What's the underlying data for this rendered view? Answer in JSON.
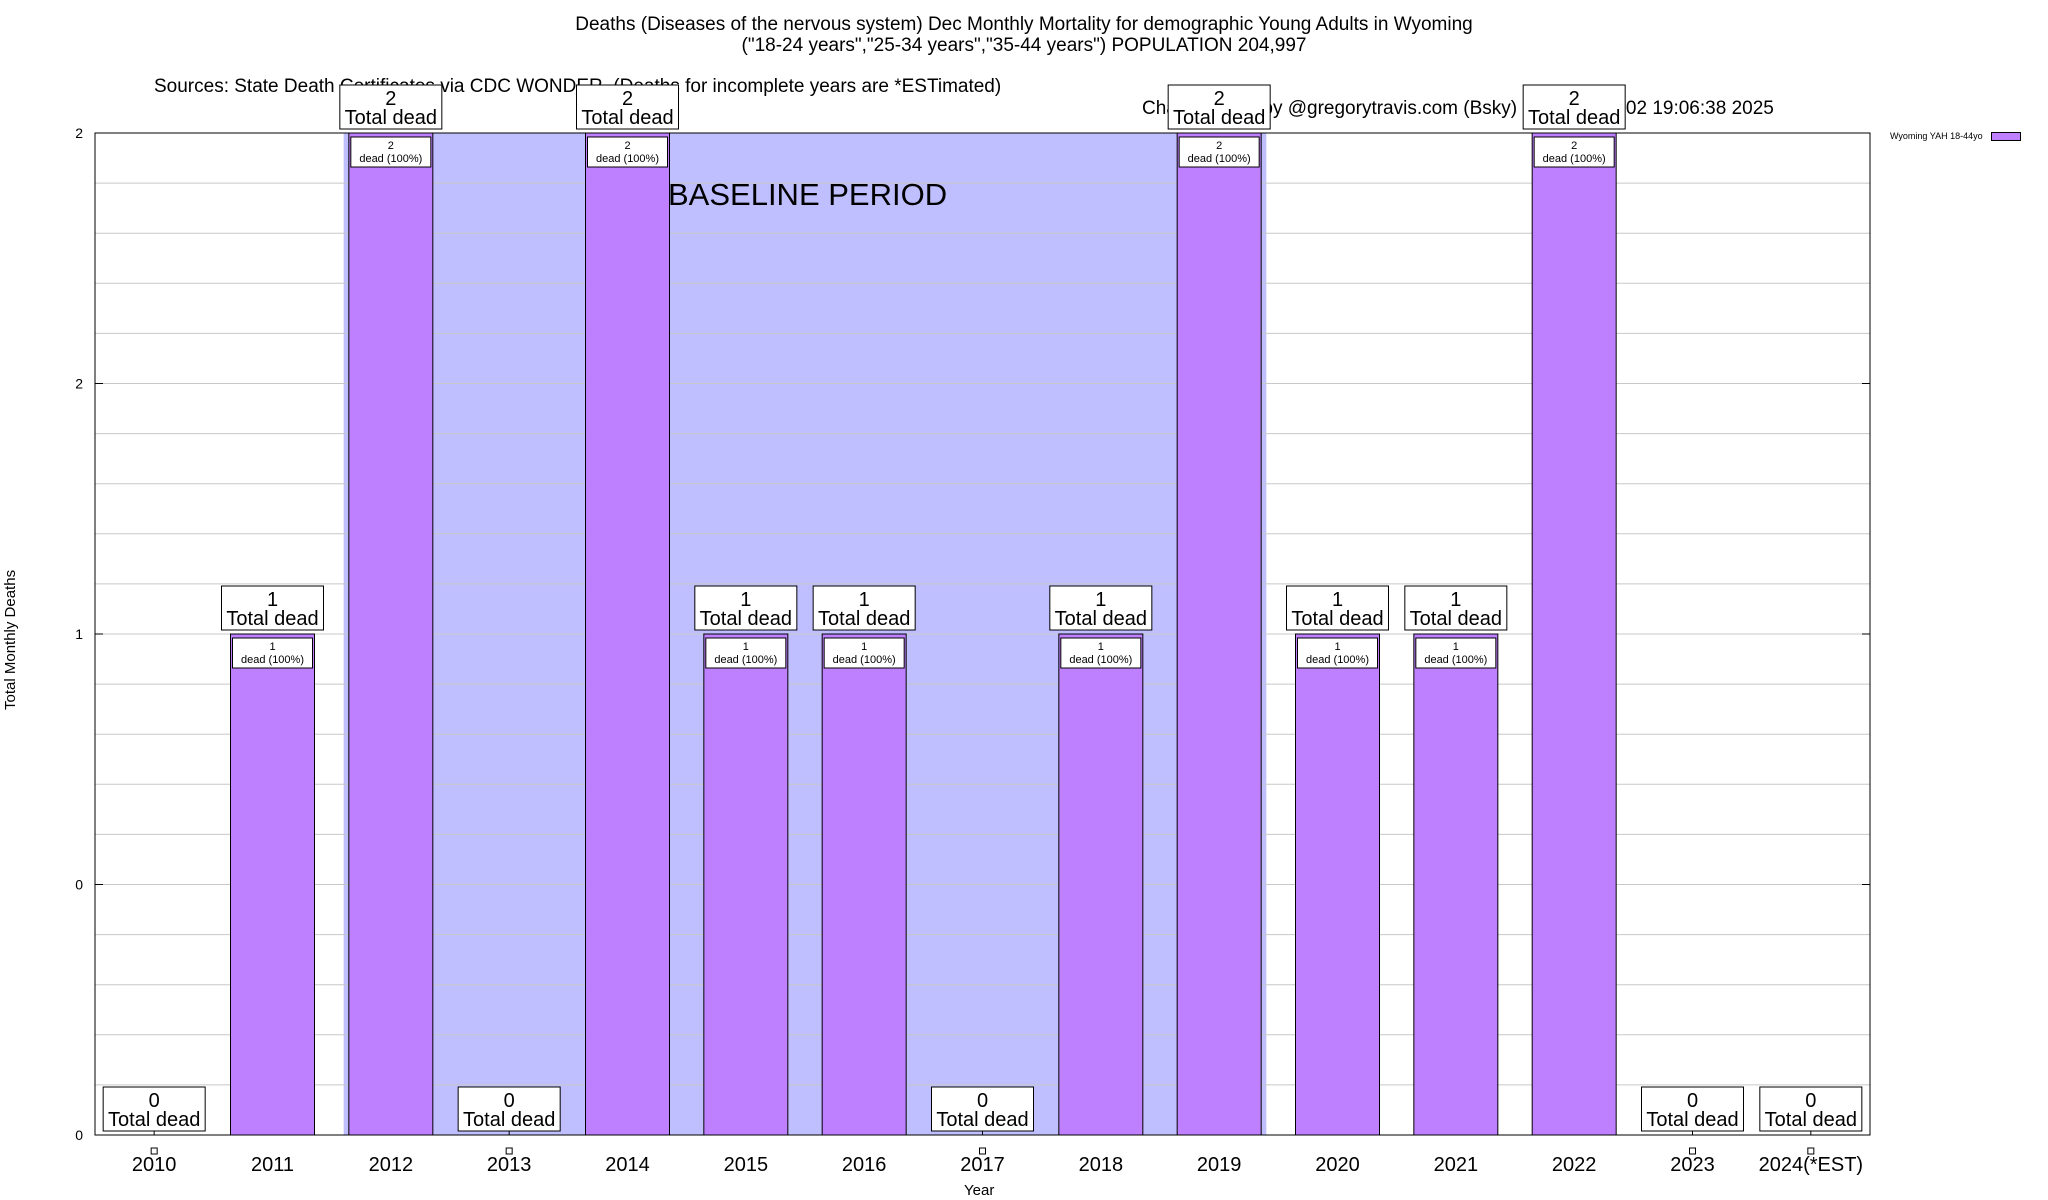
{
  "title": {
    "line1": "Deaths (Diseases of the nervous system) Dec Monthly Mortality for demographic Young Adults in Wyoming",
    "line2": "(\"18-24 years\",\"25-34 years\",\"35-44 years\") POPULATION 204,997",
    "sources": "Sources: State Death Certificates via CDC WONDER. (Deaths for incomplete years are *ESTimated)",
    "credit": "Chart created by @gregorytravis.com (Bsky) on Sun Feb 02 19:06:38 2025"
  },
  "colors": {
    "bar": "#bf80ff",
    "baseline": "#bfbfff",
    "grid": "#c8c8c8"
  },
  "chart_data": {
    "type": "bar",
    "xlabel": "Year",
    "ylabel": "Total Monthly Deaths",
    "ylim": [
      0,
      2
    ],
    "ytick_labels": [
      "0",
      "0",
      "1",
      "2",
      "2"
    ],
    "grid": true,
    "legend_placement": "top-right",
    "categories": [
      "2010",
      "2011",
      "2012",
      "2013",
      "2014",
      "2015",
      "2016",
      "2017",
      "2018",
      "2019",
      "2020",
      "2021",
      "2022",
      "2023",
      "2024(*EST)"
    ],
    "series": [
      {
        "name": "Wyoming YAH 18-44yo",
        "values": [
          0,
          1,
          2,
          0,
          2,
          1,
          1,
          0,
          1,
          2,
          1,
          1,
          2,
          0,
          0
        ]
      }
    ],
    "total_label_suffix": "Total dead",
    "bar_label_suffix": "dead (100%)",
    "baseline_period": {
      "label": "BASELINE PERIOD",
      "start": "2012",
      "end": "2019"
    }
  }
}
